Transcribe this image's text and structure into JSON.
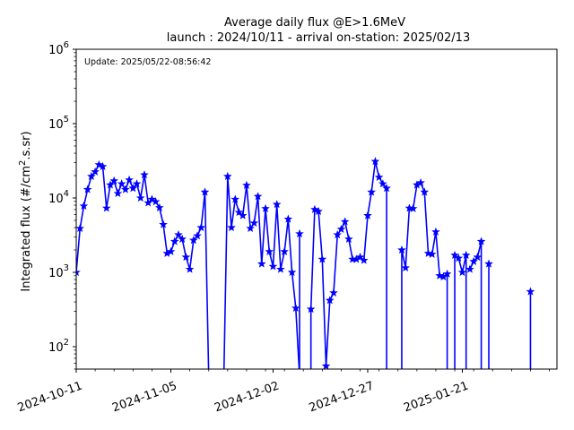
{
  "chart_data": {
    "type": "line",
    "title": "Average daily flux @E>1.6MeV",
    "subtitle": "launch : 2024/10/11 - arrival on-station: 2025/02/13",
    "xlabel": "",
    "ylabel_parts": [
      "Integrated flux (#/cm",
      "2",
      ".s.sr)"
    ],
    "annotation": "Update: 2025/05/22-08:56:42",
    "x_tick_labels": [
      "2024-10-11",
      "2024-11-05",
      "2024-12-02",
      "2024-12-27",
      "2025-01-21"
    ],
    "y_tick_labels": [
      {
        "base": "10",
        "exp": "2"
      },
      {
        "base": "10",
        "exp": "3"
      },
      {
        "base": "10",
        "exp": "4"
      },
      {
        "base": "10",
        "exp": "5"
      },
      {
        "base": "10",
        "exp": "6"
      }
    ],
    "yscale": "log",
    "xlim": [
      "2024-10-11",
      "2025-02-15"
    ],
    "ylim": [
      50,
      1000000
    ],
    "color": "#0000ff",
    "marker": "star",
    "series": [
      {
        "points": [
          [
            "2024-10-11",
            1000
          ],
          [
            "2024-10-12",
            3900
          ],
          [
            "2024-10-13",
            7800
          ],
          [
            "2024-10-14",
            13000
          ],
          [
            "2024-10-15",
            19500
          ],
          [
            "2024-10-16",
            22500
          ],
          [
            "2024-10-17",
            28000
          ],
          [
            "2024-10-18",
            26500
          ],
          [
            "2024-10-19",
            7300
          ],
          [
            "2024-10-20",
            15000
          ],
          [
            "2024-10-21",
            17000
          ],
          [
            "2024-10-22",
            11500
          ],
          [
            "2024-10-23",
            15500
          ],
          [
            "2024-10-24",
            13000
          ],
          [
            "2024-10-25",
            17500
          ],
          [
            "2024-10-26",
            13500
          ],
          [
            "2024-10-27",
            15500
          ],
          [
            "2024-10-28",
            10000
          ],
          [
            "2024-10-29",
            20500
          ],
          [
            "2024-10-30",
            8600
          ],
          [
            "2024-10-31",
            9600
          ],
          [
            "2024-11-01",
            8900
          ],
          [
            "2024-11-02",
            7400
          ],
          [
            "2024-11-03",
            4400
          ],
          [
            "2024-11-04",
            1800
          ],
          [
            "2024-11-05",
            1900
          ],
          [
            "2024-11-06",
            2600
          ],
          [
            "2024-11-07",
            3200
          ],
          [
            "2024-11-08",
            2800
          ],
          [
            "2024-11-09",
            1600
          ],
          [
            "2024-11-10",
            1100
          ],
          [
            "2024-11-11",
            2700
          ],
          [
            "2024-11-12",
            3100
          ],
          [
            "2024-11-13",
            4000
          ],
          [
            "2024-11-14",
            12000
          ],
          [
            "2024-11-15",
            40
          ]
        ]
      },
      {
        "points": [
          [
            "2024-11-19",
            40
          ],
          [
            "2024-11-20",
            19500
          ],
          [
            "2024-11-21",
            4000
          ],
          [
            "2024-11-22",
            9600
          ],
          [
            "2024-11-23",
            6400
          ],
          [
            "2024-11-24",
            5800
          ],
          [
            "2024-11-25",
            14800
          ],
          [
            "2024-11-26",
            3900
          ],
          [
            "2024-11-27",
            4600
          ],
          [
            "2024-11-28",
            10500
          ],
          [
            "2024-11-29",
            1300
          ],
          [
            "2024-11-30",
            7200
          ],
          [
            "2024-12-01",
            1900
          ],
          [
            "2024-12-02",
            1200
          ],
          [
            "2024-12-03",
            8200
          ],
          [
            "2024-12-04",
            1100
          ],
          [
            "2024-12-05",
            1900
          ],
          [
            "2024-12-06",
            5200
          ],
          [
            "2024-12-07",
            1000
          ],
          [
            "2024-12-08",
            330
          ],
          [
            "2024-12-09",
            40
          ]
        ]
      },
      {
        "points": [
          [
            "2024-12-09",
            3300
          ],
          [
            "2024-12-09",
            40
          ]
        ]
      },
      {
        "points": [
          [
            "2024-12-12",
            40
          ],
          [
            "2024-12-12",
            320
          ],
          [
            "2024-12-13",
            7000
          ],
          [
            "2024-12-14",
            6600
          ],
          [
            "2024-12-15",
            1500
          ],
          [
            "2024-12-16",
            55
          ],
          [
            "2024-12-17",
            420
          ],
          [
            "2024-12-18",
            530
          ],
          [
            "2024-12-19",
            3200
          ],
          [
            "2024-12-20",
            3800
          ],
          [
            "2024-12-21",
            4800
          ],
          [
            "2024-12-22",
            2800
          ],
          [
            "2024-12-23",
            1500
          ],
          [
            "2024-12-24",
            1500
          ],
          [
            "2024-12-25",
            1600
          ],
          [
            "2024-12-26",
            1450
          ],
          [
            "2024-12-27",
            5800
          ],
          [
            "2024-12-28",
            12000
          ],
          [
            "2024-12-29",
            31000
          ],
          [
            "2024-12-30",
            19000
          ],
          [
            "2024-12-31",
            15500
          ],
          [
            "2025-01-01",
            13500
          ],
          [
            "2025-01-01",
            40
          ]
        ]
      },
      {
        "points": [
          [
            "2025-01-05",
            40
          ],
          [
            "2025-01-05",
            2000
          ],
          [
            "2025-01-06",
            1150
          ],
          [
            "2025-01-07",
            7300
          ],
          [
            "2025-01-08",
            7200
          ],
          [
            "2025-01-09",
            15000
          ],
          [
            "2025-01-10",
            16000
          ],
          [
            "2025-01-11",
            12000
          ],
          [
            "2025-01-12",
            1800
          ],
          [
            "2025-01-13",
            1750
          ],
          [
            "2025-01-14",
            3500
          ],
          [
            "2025-01-15",
            900
          ],
          [
            "2025-01-16",
            870
          ],
          [
            "2025-01-17",
            950
          ],
          [
            "2025-01-17",
            40
          ]
        ]
      },
      {
        "points": [
          [
            "2025-01-19",
            40
          ],
          [
            "2025-01-19",
            1700
          ],
          [
            "2025-01-20",
            1550
          ],
          [
            "2025-01-21",
            1000
          ],
          [
            "2025-01-22",
            1700
          ],
          [
            "2025-01-22",
            40
          ]
        ]
      },
      {
        "points": [
          [
            "2025-01-23",
            1100
          ],
          [
            "2025-01-24",
            1400
          ],
          [
            "2025-01-25",
            1600
          ],
          [
            "2025-01-26",
            2600
          ],
          [
            "2025-01-26",
            40
          ]
        ]
      },
      {
        "points": [
          [
            "2025-01-28",
            1300
          ],
          [
            "2025-01-28",
            40
          ]
        ]
      },
      {
        "points": [
          [
            "2025-02-08",
            550
          ],
          [
            "2025-02-08",
            40
          ]
        ]
      }
    ]
  }
}
